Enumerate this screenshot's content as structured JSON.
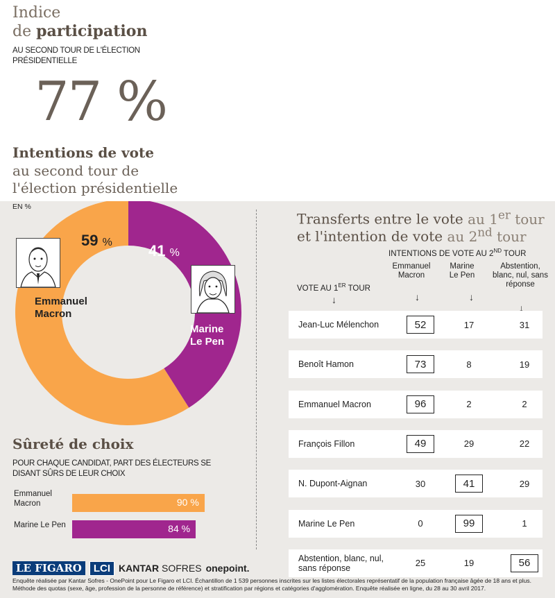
{
  "participation": {
    "title_line1": "Indice",
    "title_line2_plain": "de",
    "title_line2_bold": "participation",
    "subtitle": "AU SECOND TOUR DE L'ÉLECTION PRÉSIDENTIELLE",
    "value": "77 %"
  },
  "intentions": {
    "title_line1": "Intentions de vote",
    "title_line2": "au second tour de",
    "title_line3": "l'élection présidentielle",
    "unit": "EN %"
  },
  "chart_data": [
    {
      "type": "pie",
      "title": "Intentions de vote au second tour de l'élection présidentielle",
      "unit": "EN %",
      "slices": [
        {
          "name": "Emmanuel Macron",
          "value": 59,
          "color": "#f9a54a"
        },
        {
          "name": "Marine Le Pen",
          "value": 41,
          "color": "#a0268e"
        }
      ]
    },
    {
      "type": "bar",
      "title": "Sûreté de choix",
      "subtitle": "POUR CHAQUE CANDIDAT, PART DES ÉLECTEURS SE DISANT SÛRS DE LEUR CHOIX",
      "categories": [
        "Emmanuel Macron",
        "Marine Le Pen"
      ],
      "values": [
        90,
        84
      ],
      "colors": [
        "#f9a54a",
        "#a0268e"
      ],
      "xlim": [
        0,
        100
      ]
    },
    {
      "type": "table",
      "title": "Transferts entre le vote au 1er tour et l'intention de vote au 2nd tour",
      "column_group": "INTENTIONS DE VOTE AU 2ND TOUR",
      "row_header": "VOTE AU 1ER TOUR",
      "columns": [
        "Emmanuel Macron",
        "Marine Le Pen",
        "Abstention, blanc, nul, sans réponse"
      ],
      "rows": [
        {
          "label": "Jean-Luc Mélenchon",
          "values": [
            52,
            17,
            31
          ],
          "boxed": 0
        },
        {
          "label": "Benoît Hamon",
          "values": [
            73,
            8,
            19
          ],
          "boxed": 0
        },
        {
          "label": "Emmanuel Macron",
          "values": [
            96,
            2,
            2
          ],
          "boxed": 0
        },
        {
          "label": "François Fillon",
          "values": [
            49,
            29,
            22
          ],
          "boxed": 0
        },
        {
          "label": "N. Dupont-Aignan",
          "values": [
            30,
            41,
            29
          ],
          "boxed": 1
        },
        {
          "label": "Marine Le Pen",
          "values": [
            0,
            99,
            1
          ],
          "boxed": 1
        },
        {
          "label": "Abstention, blanc, nul, sans réponse",
          "values": [
            25,
            19,
            56
          ],
          "boxed": 2
        }
      ]
    }
  ],
  "donut_labels": {
    "macron_pct": "59",
    "lepen_pct": "41",
    "pct_sign": "%",
    "macron_name": "Emmanuel Macron",
    "lepen_name": "Marine Le Pen"
  },
  "surete": {
    "title": "Sûreté de choix",
    "subtitle": "POUR CHAQUE CANDIDAT, PART DES ÉLECTEURS SE DISANT SÛRS DE LEUR CHOIX",
    "bars": [
      {
        "name": "Emmanuel Macron",
        "label": "90 %"
      },
      {
        "name": "Marine Le Pen",
        "label": "84 %"
      }
    ]
  },
  "transferts": {
    "title_a": "Transferts entre le vote",
    "title_b": "au 1",
    "title_b_sup": "er",
    "title_c": "tour",
    "title_d": "et l'intention de vote",
    "title_e": "au 2",
    "title_e_sup": "nd",
    "title_f": "tour",
    "col_group_main": "INTENTIONS DE VOTE AU 2",
    "col_group_sup": "ND",
    "col_group_end": "TOUR",
    "row_header_main": "VOTE AU 1",
    "row_header_sup": "ER",
    "row_header_end": "TOUR"
  },
  "footer": {
    "logo_figaro": "LE FIGARO",
    "logo_lci": "LCI",
    "logo_kantar": "KANTAR",
    "logo_sofres": "SOFRES",
    "logo_onepoint": "onepoint.",
    "note": "Enquête réalisée par Kantar Sofres - OnePoint pour Le Figaro et LCI. Échantillon de 1 539 personnes inscrites sur les listes électorales représentatif de la population française âgée de 18 ans et plus. Méthode des quotas (sexe, âge, profession de la personne de référence) et stratification par régions et catégories d'agglomération. Enquête réalisée en ligne, du 28 au 30 avril 2017."
  }
}
